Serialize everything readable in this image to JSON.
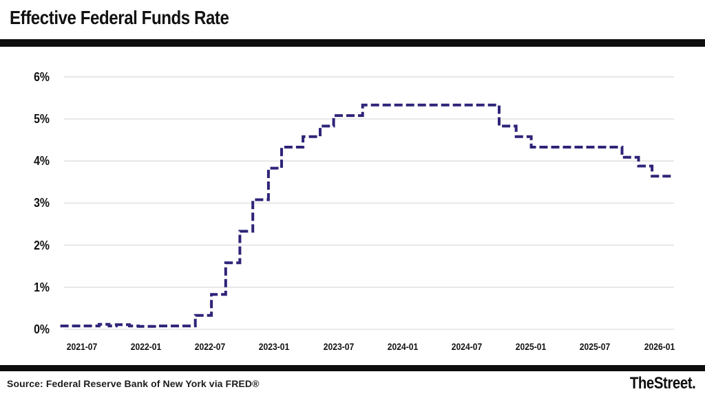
{
  "header": {
    "title": "Effective Federal Funds Rate"
  },
  "footer": {
    "source": "Source: Federal Reserve Bank of New York via FRED®",
    "logo": "TheStreet",
    "logo_dot": "."
  },
  "chart_data": {
    "type": "line",
    "subtype": "step-after",
    "title": "Effective Federal Funds Rate",
    "xlabel": "",
    "ylabel": "",
    "unit": "%",
    "ylim": [
      0,
      6
    ],
    "x_domain": [
      "2021-05-01",
      "2026-02-10"
    ],
    "grid": true,
    "legend_position": "none",
    "line_color": "#2e2478",
    "line_style": "dashed",
    "grid_color": "#e2e2e2",
    "y_ticks": [
      {
        "value": 0,
        "label": "0%"
      },
      {
        "value": 1,
        "label": "1%"
      },
      {
        "value": 2,
        "label": "2%"
      },
      {
        "value": 3,
        "label": "3%"
      },
      {
        "value": 4,
        "label": "4%"
      },
      {
        "value": 5,
        "label": "5%"
      },
      {
        "value": 6,
        "label": "6%"
      }
    ],
    "x_ticks": [
      {
        "t": "2021-07-01",
        "label": "2021-07"
      },
      {
        "t": "2022-01-01",
        "label": "2022-01"
      },
      {
        "t": "2022-07-01",
        "label": "2022-07"
      },
      {
        "t": "2023-01-01",
        "label": "2023-01"
      },
      {
        "t": "2023-07-01",
        "label": "2023-07"
      },
      {
        "t": "2024-01-01",
        "label": "2024-01"
      },
      {
        "t": "2024-07-01",
        "label": "2024-07"
      },
      {
        "t": "2025-01-01",
        "label": "2025-01"
      },
      {
        "t": "2025-07-01",
        "label": "2025-07"
      },
      {
        "t": "2026-01-01",
        "label": "2026-01"
      }
    ],
    "series": [
      {
        "name": "Effective Federal Funds Rate (%)",
        "points": [
          [
            "2021-05-01",
            0.08
          ],
          [
            "2021-08-20",
            0.12
          ],
          [
            "2021-09-18",
            0.08
          ],
          [
            "2021-10-08",
            0.11
          ],
          [
            "2021-11-15",
            0.08
          ],
          [
            "2021-12-10",
            0.07
          ],
          [
            "2022-02-01",
            0.08
          ],
          [
            "2022-05-20",
            0.33
          ],
          [
            "2022-07-05",
            0.83
          ],
          [
            "2022-08-15",
            1.58
          ],
          [
            "2022-09-25",
            2.33
          ],
          [
            "2022-11-01",
            3.08
          ],
          [
            "2022-12-15",
            3.83
          ],
          [
            "2023-01-22",
            4.33
          ],
          [
            "2023-03-22",
            4.58
          ],
          [
            "2023-05-10",
            4.83
          ],
          [
            "2023-06-18",
            5.08
          ],
          [
            "2023-09-09",
            5.33
          ],
          [
            "2024-10-02",
            4.83
          ],
          [
            "2024-11-20",
            4.58
          ],
          [
            "2025-01-02",
            4.33
          ],
          [
            "2025-09-17",
            4.09
          ],
          [
            "2025-11-03",
            3.88
          ],
          [
            "2025-12-11",
            3.64
          ],
          [
            "2026-02-10",
            3.64
          ]
        ]
      }
    ]
  }
}
